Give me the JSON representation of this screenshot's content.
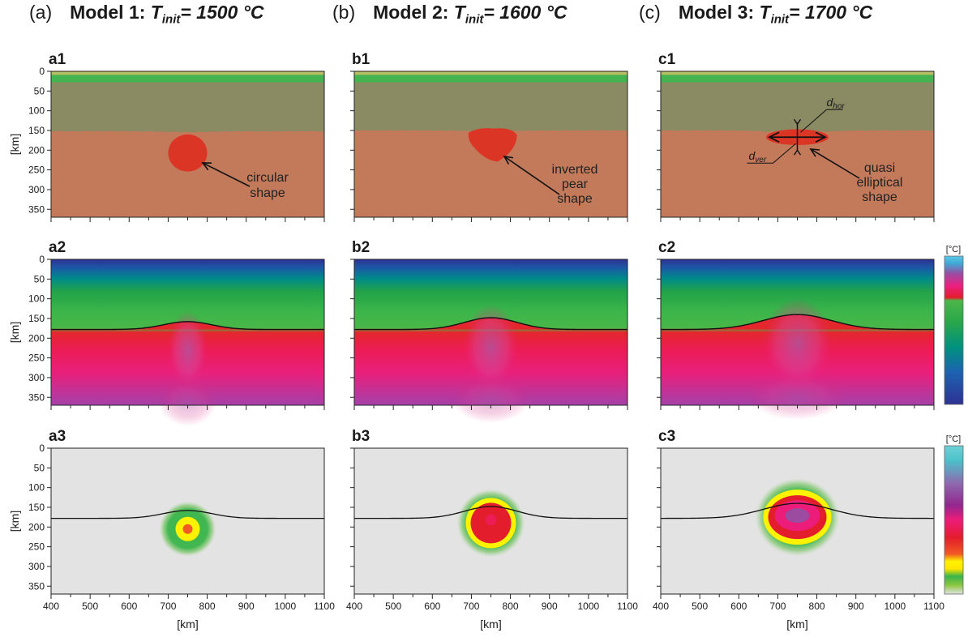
{
  "figure": {
    "columns": [
      {
        "letter": "(a)",
        "model": "Model 1:",
        "t_symbol": "T",
        "t_sub": "init",
        "t_value": "= 1500 °C"
      },
      {
        "letter": "(b)",
        "model": "Model 2:",
        "t_symbol": "T",
        "t_sub": "init",
        "t_value": "= 1600 °C"
      },
      {
        "letter": "(c)",
        "model": "Model 3:",
        "t_symbol": "T",
        "t_sub": "init",
        "t_value": "= 1700 °C"
      }
    ],
    "panel_labels": {
      "row1": [
        "a1",
        "b1",
        "c1"
      ],
      "row2": [
        "a2",
        "b2",
        "c2"
      ],
      "row3": [
        "a3",
        "b3",
        "c3"
      ]
    },
    "annotations": {
      "a1": [
        "circular",
        "shape"
      ],
      "b1": [
        "inverted",
        "pear",
        "shape"
      ],
      "c1": [
        "quasi",
        "elliptical",
        "shape"
      ],
      "d_hor": "d",
      "d_hor_sub": "hor",
      "d_ver": "d",
      "d_ver_sub": "ver"
    },
    "colorbar_unit": "[°C]",
    "colors": {
      "asthenosphere": "#c27a5b",
      "lithosphere": "#8a8a63",
      "crust_green": "#45b34f",
      "crust_top": "#b6bd63",
      "plume": "#db3526",
      "background_gray": "#e3e3e3"
    }
  },
  "chart_data": [
    {
      "panel": "a1",
      "type": "heatmap",
      "field": "composition",
      "ylabel": "[km]",
      "ylim": [
        0,
        370
      ],
      "yticks": [
        0,
        50,
        100,
        150,
        200,
        250,
        300,
        350
      ],
      "xlim": [
        400,
        1100
      ],
      "plume": {
        "shape": "circular",
        "center_x_km": 750,
        "center_y_km": 207,
        "radius_x_km": 50,
        "radius_y_km": 47
      },
      "lab_depth_km": 152
    },
    {
      "panel": "b1",
      "type": "heatmap",
      "field": "composition",
      "ylabel": "",
      "ylim": [
        0,
        370
      ],
      "yticks": [
        0,
        50,
        100,
        150,
        200,
        250,
        300,
        350
      ],
      "xlim": [
        400,
        1100
      ],
      "plume": {
        "shape": "inverted pear",
        "center_x_km": 755,
        "center_y_km": 186,
        "radius_x_km": 62,
        "radius_y_km": 43
      },
      "lab_depth_km": 150
    },
    {
      "panel": "c1",
      "type": "heatmap",
      "field": "composition",
      "ylabel": "",
      "ylim": [
        0,
        370
      ],
      "yticks": [
        0,
        50,
        100,
        150,
        200,
        250,
        300,
        350
      ],
      "xlim": [
        400,
        1100
      ],
      "plume": {
        "shape": "quasi elliptical",
        "center_x_km": 750,
        "center_y_km": 167,
        "radius_x_km": 80,
        "radius_y_km": 20
      },
      "lab_depth_km": 150
    },
    {
      "panel": "a2",
      "type": "heatmap",
      "field": "temperature",
      "ylabel": "[km]",
      "ylim": [
        0,
        370
      ],
      "yticks": [
        0,
        50,
        100,
        150,
        200,
        250,
        300,
        350
      ],
      "xlim": [
        400,
        1100
      ],
      "boundary": {
        "base_depth_km": 178,
        "uplift_km": 20,
        "center_x_km": 750,
        "half_width_km": 110
      }
    },
    {
      "panel": "b2",
      "type": "heatmap",
      "field": "temperature",
      "ylabel": "",
      "ylim": [
        0,
        370
      ],
      "yticks": [
        0,
        50,
        100,
        150,
        200,
        250,
        300,
        350
      ],
      "xlim": [
        400,
        1100
      ],
      "boundary": {
        "base_depth_km": 178,
        "uplift_km": 30,
        "center_x_km": 750,
        "half_width_km": 120
      }
    },
    {
      "panel": "c2",
      "type": "heatmap",
      "field": "temperature",
      "ylabel": "",
      "ylim": [
        0,
        370
      ],
      "yticks": [
        0,
        50,
        100,
        150,
        200,
        250,
        300,
        350
      ],
      "xlim": [
        400,
        1100
      ],
      "boundary": {
        "base_depth_km": 178,
        "uplift_km": 38,
        "center_x_km": 750,
        "half_width_km": 155
      }
    },
    {
      "panel": "a3",
      "type": "heatmap",
      "field": "temperature anomaly",
      "ylabel": "[km]",
      "xlabel": "[km]",
      "ylim": [
        0,
        370
      ],
      "yticks": [
        0,
        50,
        100,
        150,
        200,
        250,
        300,
        350
      ],
      "xlim": [
        400,
        1100
      ],
      "xticks": [
        400,
        500,
        600,
        700,
        800,
        900,
        1000,
        1100
      ],
      "boundary": {
        "base_depth_km": 178,
        "uplift_km": 20,
        "center_x_km": 750,
        "half_width_km": 110
      }
    },
    {
      "panel": "b3",
      "type": "heatmap",
      "field": "temperature anomaly",
      "ylabel": "",
      "xlabel": "[km]",
      "ylim": [
        0,
        370
      ],
      "yticks": [
        0,
        50,
        100,
        150,
        200,
        250,
        300,
        350
      ],
      "xlim": [
        400,
        1100
      ],
      "xticks": [
        400,
        500,
        600,
        700,
        800,
        900,
        1000,
        1100
      ],
      "boundary": {
        "base_depth_km": 178,
        "uplift_km": 30,
        "center_x_km": 750,
        "half_width_km": 120
      }
    },
    {
      "panel": "c3",
      "type": "heatmap",
      "field": "temperature anomaly",
      "ylabel": "",
      "xlabel": "[km]",
      "ylim": [
        0,
        370
      ],
      "yticks": [
        0,
        50,
        100,
        150,
        200,
        250,
        300,
        350
      ],
      "xlim": [
        400,
        1100
      ],
      "xticks": [
        400,
        500,
        600,
        700,
        800,
        900,
        1000,
        1100
      ],
      "boundary": {
        "base_depth_km": 178,
        "uplift_km": 38,
        "center_x_km": 750,
        "half_width_km": 155
      }
    }
  ]
}
